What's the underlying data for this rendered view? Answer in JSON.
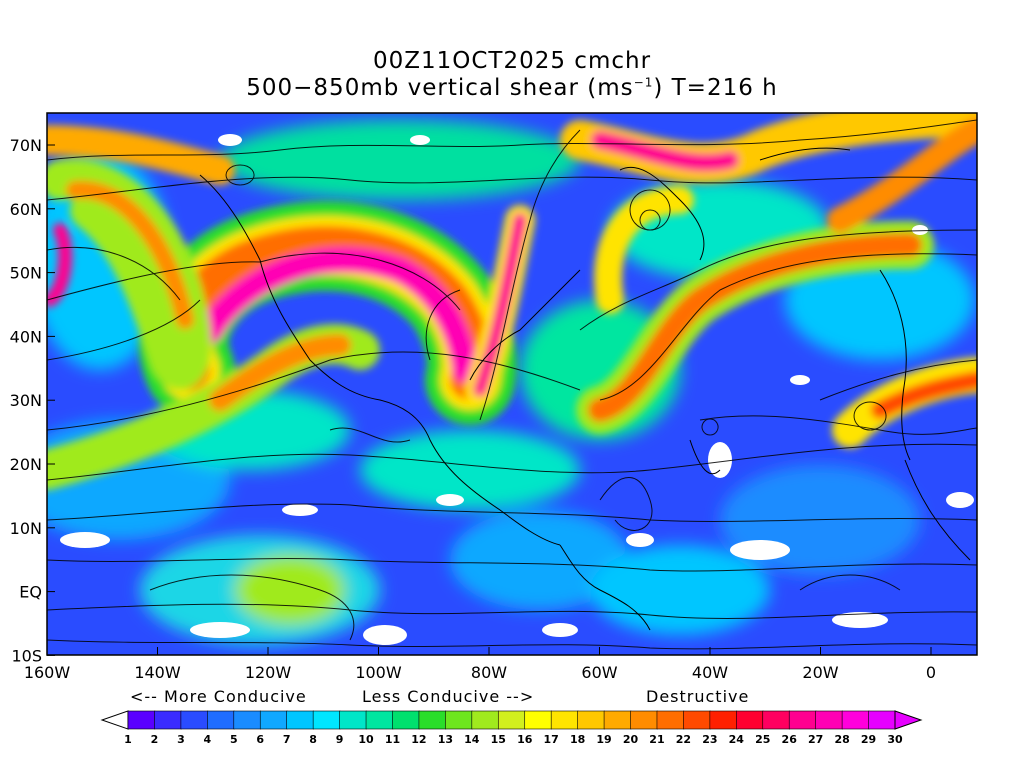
{
  "title": {
    "line1": "00Z11OCT2025 cmchr",
    "line2_main": "500−850mb vertical shear (ms",
    "line2_sup": "−1",
    "line2_end": ") T=216 h"
  },
  "axes": {
    "lat_labels": [
      "70N",
      "60N",
      "50N",
      "40N",
      "30N",
      "20N",
      "10N",
      "EQ",
      "10S"
    ],
    "lon_labels": [
      "160W",
      "140W",
      "120W",
      "100W",
      "80W",
      "60W",
      "40W",
      "20W",
      "0"
    ]
  },
  "legend": {
    "more_conducive": "<-- More Conducive",
    "less_conducive": "Less Conducive -->",
    "destructive": "Destructive",
    "ticks": [
      "1",
      "2",
      "3",
      "4",
      "5",
      "6",
      "7",
      "8",
      "9",
      "10",
      "11",
      "12",
      "13",
      "14",
      "15",
      "16",
      "17",
      "18",
      "19",
      "20",
      "21",
      "22",
      "23",
      "24",
      "25",
      "26",
      "27",
      "28",
      "29",
      "30"
    ],
    "colors": [
      "#ffffff",
      "#5a00ff",
      "#3a2bff",
      "#2a4cff",
      "#1f6dff",
      "#1a8cff",
      "#10a8ff",
      "#00c6ff",
      "#00e6ff",
      "#00e6c8",
      "#00e6a0",
      "#00e06e",
      "#2ade2a",
      "#6ee61e",
      "#a0ea1e",
      "#d2f01e",
      "#ffff00",
      "#ffe400",
      "#ffc800",
      "#ffaa00",
      "#ff8c00",
      "#ff6e00",
      "#ff4a00",
      "#ff2000",
      "#ff0030",
      "#ff0060",
      "#ff0090",
      "#ff00b4",
      "#ff00dc",
      "#e600ff"
    ]
  }
}
